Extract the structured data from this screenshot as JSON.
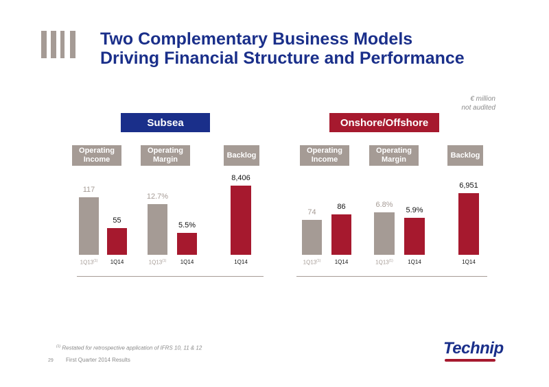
{
  "header": {
    "title_line1": "Two Complementary Business Models",
    "title_line2": "Driving Financial Structure and Performance"
  },
  "units": {
    "line1": "€ million",
    "line2": "not audited"
  },
  "colors": {
    "navy": "#1a2f8a",
    "crimson": "#a6192e",
    "taupe": "#a59b95",
    "grey_text": "#a59b95"
  },
  "chart_data": [
    {
      "type": "bar",
      "title": "Subsea",
      "groups": [
        {
          "header": "Operating Income",
          "categories": [
            "1Q13",
            "1Q14"
          ],
          "values": [
            117,
            55
          ],
          "labels": [
            "117",
            "55"
          ],
          "footnote_marks": [
            "(1)",
            ""
          ]
        },
        {
          "header": "Operating Margin",
          "categories": [
            "1Q13",
            "1Q14"
          ],
          "values": [
            12.7,
            5.5
          ],
          "labels": [
            "12.7%",
            "5.5%"
          ],
          "footnote_marks": [
            "(1)",
            ""
          ]
        },
        {
          "header": "Backlog",
          "categories": [
            "1Q14"
          ],
          "values": [
            8406
          ],
          "labels": [
            "8,406"
          ],
          "footnote_marks": [
            ""
          ]
        }
      ]
    },
    {
      "type": "bar",
      "title": "Onshore/Offshore",
      "groups": [
        {
          "header": "Operating Income",
          "categories": [
            "1Q13",
            "1Q14"
          ],
          "values": [
            74,
            86
          ],
          "labels": [
            "74",
            "86"
          ],
          "footnote_marks": [
            "(1)",
            ""
          ]
        },
        {
          "header": "Operating Margin",
          "categories": [
            "1Q13",
            "1Q14"
          ],
          "values": [
            6.8,
            5.9
          ],
          "labels": [
            "6.8%",
            "5.9%"
          ],
          "footnote_marks": [
            "(1)",
            ""
          ]
        },
        {
          "header": "Backlog",
          "categories": [
            "1Q14"
          ],
          "values": [
            6951
          ],
          "labels": [
            "6,951"
          ],
          "footnote_marks": [
            ""
          ]
        }
      ]
    }
  ],
  "footnote": {
    "mark": "(1)",
    "text": "Restated for retrospective application of IFRS 10, 11 & 12"
  },
  "footer": {
    "page": "29",
    "text": "First Quarter 2014 Results"
  },
  "logo": {
    "brand": "Technip"
  }
}
